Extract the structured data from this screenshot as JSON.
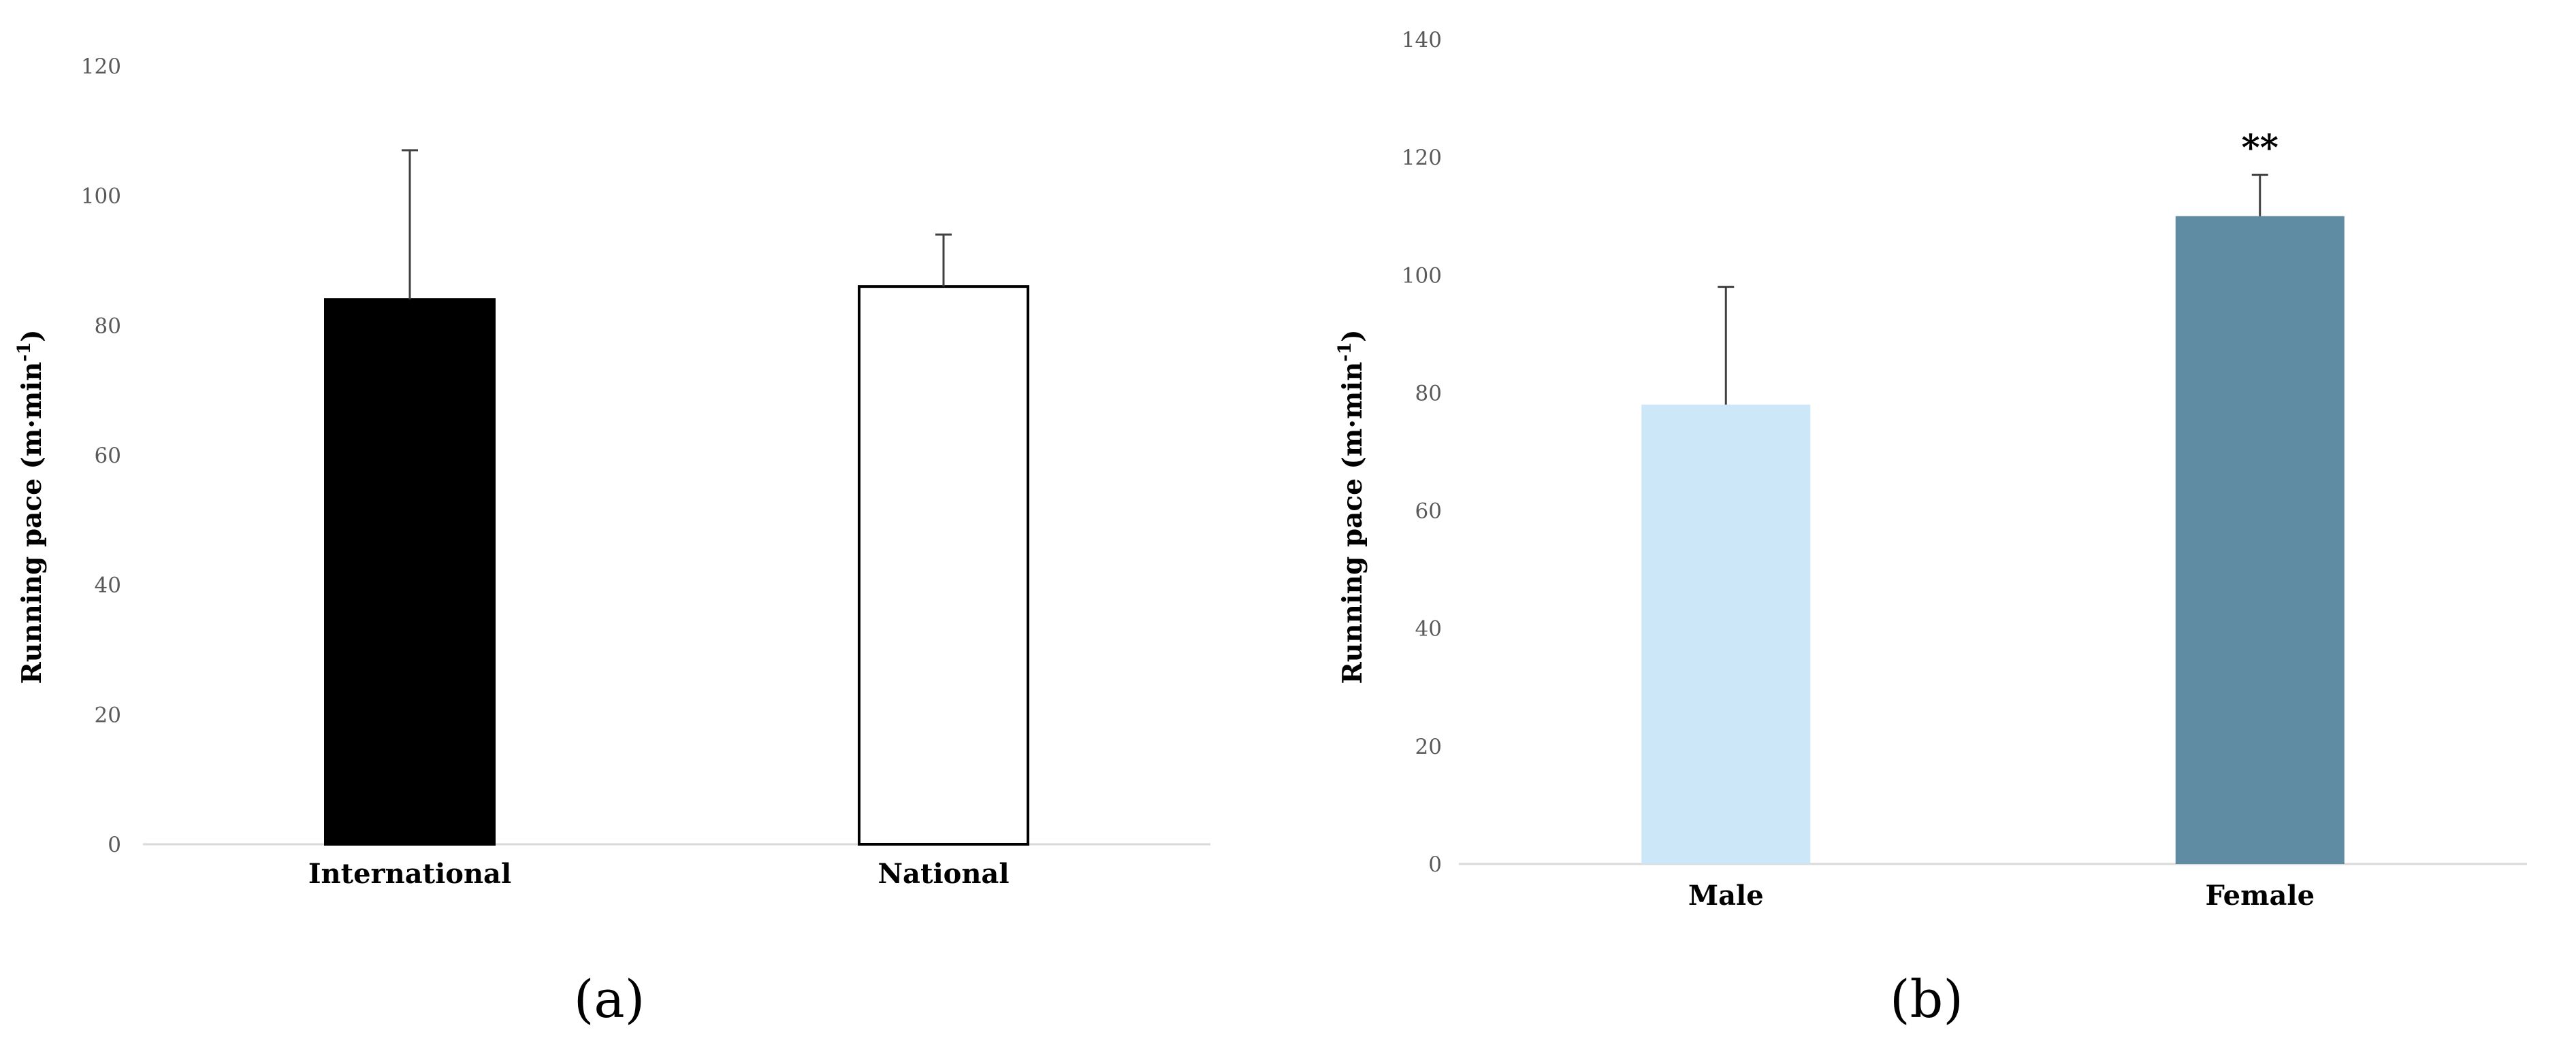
{
  "chart_data": [
    {
      "type": "bar",
      "panel_label": "(a)",
      "categories": [
        "International",
        "National"
      ],
      "values": [
        84,
        86
      ],
      "errors": [
        23,
        8
      ],
      "bar_colors": [
        "#000000",
        "#ffffff"
      ],
      "bar_outlines": [
        "#000000",
        "#000000"
      ],
      "ylabel": "Running pace (m·min",
      "ylabel_sup": "-1",
      "ylabel_close": ")",
      "ylim": [
        0,
        120
      ],
      "yticks": [
        0,
        20,
        40,
        60,
        80,
        100,
        120
      ],
      "annotations": [
        "",
        ""
      ],
      "grid": false
    },
    {
      "type": "bar",
      "panel_label": "(b)",
      "categories": [
        "Male",
        "Female"
      ],
      "values": [
        78,
        110
      ],
      "errors": [
        20,
        7
      ],
      "bar_colors": [
        "#cce7f7",
        "#5f8ba3"
      ],
      "bar_outlines": [
        "none",
        "none"
      ],
      "ylabel": "Running pace (m·min",
      "ylabel_sup": "-1",
      "ylabel_close": ")",
      "ylim": [
        0,
        140
      ],
      "yticks": [
        0,
        20,
        40,
        60,
        80,
        100,
        120,
        140
      ],
      "annotations": [
        "",
        "**"
      ],
      "grid": false
    }
  ]
}
